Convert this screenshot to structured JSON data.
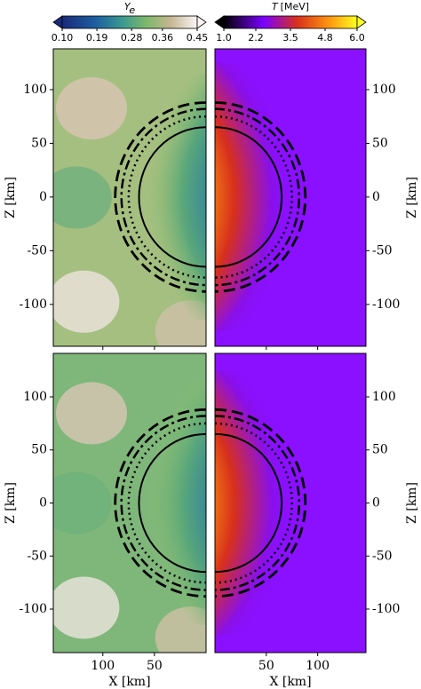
{
  "chart_data": {
    "type": "heatmap",
    "colorbars": [
      {
        "symbol": "Y",
        "subscript": "e",
        "lim": [
          0.1,
          0.45
        ],
        "ticks": [
          {
            "value": 0.1,
            "label": "0.10"
          },
          0.19,
          0.28,
          0.36,
          0.45
        ]
      },
      {
        "symbol": "T",
        "unit": "[MeV]",
        "lim": [
          1.0,
          6.0
        ],
        "ticks": [
          {
            "value": 1.0,
            "label": "1.0"
          },
          2.2,
          3.5,
          4.8,
          {
            "value": 6.0,
            "label": "6.0"
          }
        ]
      }
    ],
    "rows": [
      {
        "ylim": [
          -139,
          138
        ],
        "yticks": [
          -100,
          -50,
          0,
          50,
          100
        ]
      },
      {
        "ylim": [
          -141,
          141
        ],
        "yticks": [
          -100,
          -50,
          0,
          50,
          100
        ]
      }
    ],
    "xlim_left": [
      148,
      0
    ],
    "xticks_left": [
      100,
      50
    ],
    "xlim_right": [
      0,
      147
    ],
    "xticks_right": [
      50,
      100
    ],
    "xlabel": "X [km]",
    "ylabel": "Z [km]"
  }
}
